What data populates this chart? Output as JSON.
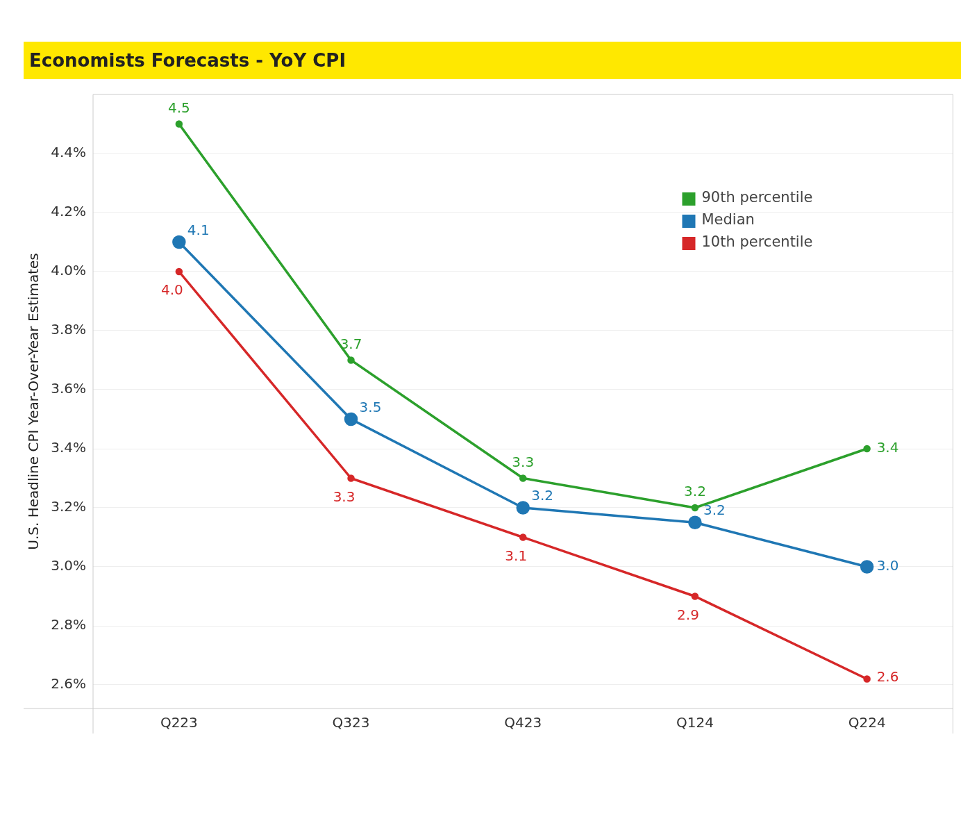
{
  "chart_data": {
    "type": "line",
    "title": "Economists Forecasts - YoY CPI",
    "ylabel": "U.S. Headline CPI Year-Over-Year Estimates",
    "categories": [
      "Q223",
      "Q323",
      "Q423",
      "Q124",
      "Q224"
    ],
    "series": [
      {
        "name": "90th percentile",
        "color": "#2ca02c",
        "values": [
          4.5,
          3.7,
          3.3,
          3.2,
          3.4
        ],
        "value_labels": [
          "4.5",
          "3.7",
          "3.3",
          "3.2",
          "3.4"
        ]
      },
      {
        "name": "Median",
        "color": "#1f77b4",
        "values": [
          4.1,
          3.5,
          3.2,
          3.15,
          3.0
        ],
        "value_labels": [
          "4.1",
          "3.5",
          "3.2",
          "3.2",
          "3.0"
        ]
      },
      {
        "name": "10th percentile",
        "color": "#d62728",
        "values": [
          4.0,
          3.3,
          3.1,
          2.9,
          2.62
        ],
        "value_labels": [
          "4.0",
          "3.3",
          "3.1",
          "2.9",
          "2.6"
        ]
      }
    ],
    "ylim": [
      2.52,
      4.6
    ],
    "yticks": [
      {
        "value": 2.6,
        "label": "2.6%"
      },
      {
        "value": 2.8,
        "label": "2.8%"
      },
      {
        "value": 3.0,
        "label": "3.0%"
      },
      {
        "value": 3.2,
        "label": "3.2%"
      },
      {
        "value": 3.4,
        "label": "3.4%"
      },
      {
        "value": 3.6,
        "label": "3.6%"
      },
      {
        "value": 3.8,
        "label": "3.8%"
      },
      {
        "value": 4.0,
        "label": "4.0%"
      },
      {
        "value": 4.2,
        "label": "4.2%"
      },
      {
        "value": 4.4,
        "label": "4.4%"
      }
    ],
    "grid": "y",
    "legend": "top right",
    "marker": "circle",
    "line_style": "solid"
  }
}
